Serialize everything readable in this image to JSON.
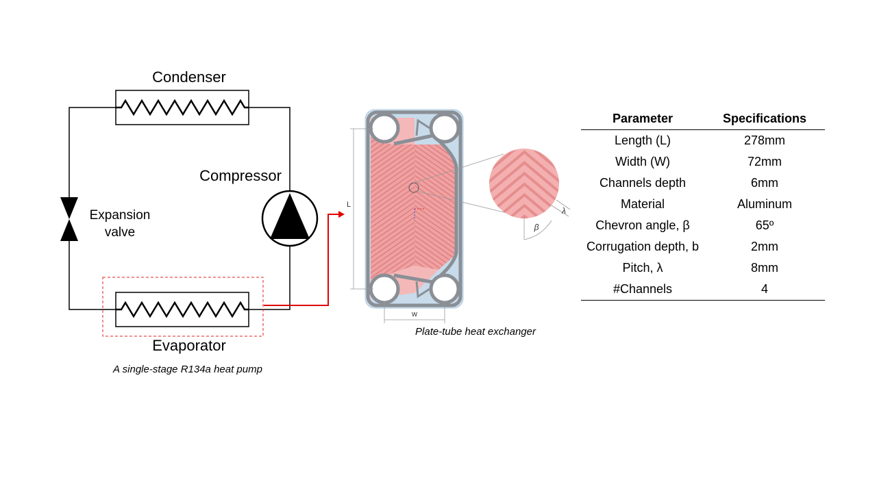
{
  "cycle": {
    "condenser": "Condenser",
    "compressor": "Compressor",
    "expansion_valve_line1": "Expansion",
    "expansion_valve_line2": "valve",
    "evaporator": "Evaporator",
    "caption": "A single-stage R134a heat pump"
  },
  "exchanger": {
    "caption": "Plate-tube heat exchanger",
    "dim_length": "L",
    "dim_width": "w",
    "beta_symbol": "β",
    "lambda_symbol": "λ"
  },
  "table": {
    "headers": [
      "Parameter",
      "Specifications"
    ],
    "rows": [
      [
        "Length (L)",
        "278mm"
      ],
      [
        "Width (W)",
        "72mm"
      ],
      [
        "Channels depth",
        "6mm"
      ],
      [
        "Material",
        "Aluminum"
      ],
      [
        "Chevron angle, β",
        "65º"
      ],
      [
        "Corrugation depth, b",
        "2mm"
      ],
      [
        "Pitch, λ",
        "8mm"
      ],
      [
        "#Channels",
        "4"
      ]
    ]
  },
  "colors": {
    "line": "#000000",
    "flow_arrow": "#e00000",
    "plate_fill": "#f0a8a8",
    "plate_frame": "#8a8f96",
    "plate_bg": "#c6daea"
  }
}
